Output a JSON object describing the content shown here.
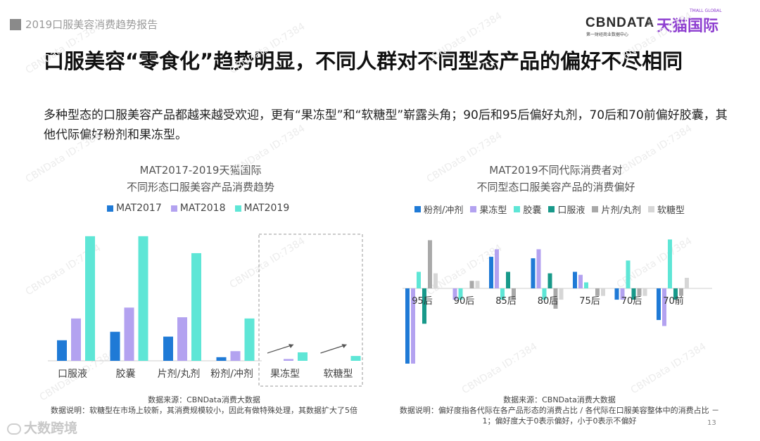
{
  "header": {
    "label": "2019口服美容消费趋势报告"
  },
  "logo": {
    "cbn": "CBNDATA",
    "cbn_sub": "第一财经商业数据中心",
    "x": "×",
    "tmall": "天猫国际",
    "tmall_en": "TMALL GLOBAL"
  },
  "page_title": "口服美容“零食化”趋势明显，不同人群对不同型态产品的偏好不尽相同",
  "page_subtitle": "多种型态的口服美容产品都越来越受欢迎，更有“果冻型”和“软糖型”崭露头角；90后和95后偏好丸剂，70后和70前偏好胶囊，其他代际偏好粉剂和果冻型。",
  "bottom_logo": "大数跨境",
  "page_number": "13",
  "watermark": "CBNData ID:7384",
  "colors": {
    "c1": "#1f7ad6",
    "c2": "#b3a2f0",
    "c3": "#5ee6d6",
    "c4": "#18998a",
    "c5": "#a9a9a9",
    "c6": "#d6d6d6"
  },
  "chart_data": [
    {
      "type": "bar",
      "title": "MAT2017-2019天猫国际",
      "subtitle": "不同形态口服美容产品消费趋势",
      "categories": [
        "口服液",
        "胶囊",
        "片剂/丸剂",
        "粉剂/冲剂",
        "果冻型",
        "软糖型"
      ],
      "series": [
        {
          "name": "MAT2017",
          "values": [
            17,
            24,
            20,
            3,
            0,
            0
          ]
        },
        {
          "name": "MAT2018",
          "values": [
            35,
            44,
            36,
            8,
            1.5,
            0
          ]
        },
        {
          "name": "MAT2019",
          "values": [
            103,
            103,
            89,
            35,
            7,
            4
          ]
        }
      ],
      "highlighted_categories": [
        "果冻型",
        "软糖型"
      ],
      "source": "数据来源：CBNData消费大数据",
      "note": "数据说明：软糖型在市场上较新，其消费规模较小，因此有做特殊处理，其数据扩大了5倍"
    },
    {
      "type": "bar",
      "title": "MAT2019不同代际消费者对",
      "subtitle": "不同型态口服美容产品的消费偏好",
      "categories": [
        "95后",
        "90后",
        "85后",
        "80后",
        "75后",
        "70后",
        "70前"
      ],
      "series": [
        {
          "name": "粉剂/冲剂",
          "values": [
            -1.0,
            0.0,
            0.42,
            0.4,
            0.22,
            -0.15,
            -0.42
          ]
        },
        {
          "name": "果冻型",
          "values": [
            -1.0,
            -0.15,
            0.52,
            0.52,
            0.18,
            -0.15,
            -0.5
          ]
        },
        {
          "name": "胶囊",
          "values": [
            0.22,
            -0.15,
            -0.15,
            -0.15,
            0.08,
            0.37,
            0.65
          ]
        },
        {
          "name": "口服液",
          "values": [
            -0.47,
            0.0,
            0.22,
            0.2,
            0.0,
            -0.15,
            -0.15
          ]
        },
        {
          "name": "片剂/丸剂",
          "values": [
            0.64,
            0.1,
            -0.15,
            -0.27,
            -0.1,
            -0.1,
            -0.1
          ]
        },
        {
          "name": "软糖型",
          "values": [
            0.2,
            0.1,
            0.0,
            -0.15,
            -0.1,
            -0.1,
            0.14
          ]
        }
      ],
      "source": "数据来源：CBNData消费大数据",
      "note": "数据说明：偏好度指各代际在各产品形态的消费占比 / 各代际在口服美容整体中的消费占比 － 1；偏好度大于0表示偏好，小于0表示不偏好"
    }
  ]
}
